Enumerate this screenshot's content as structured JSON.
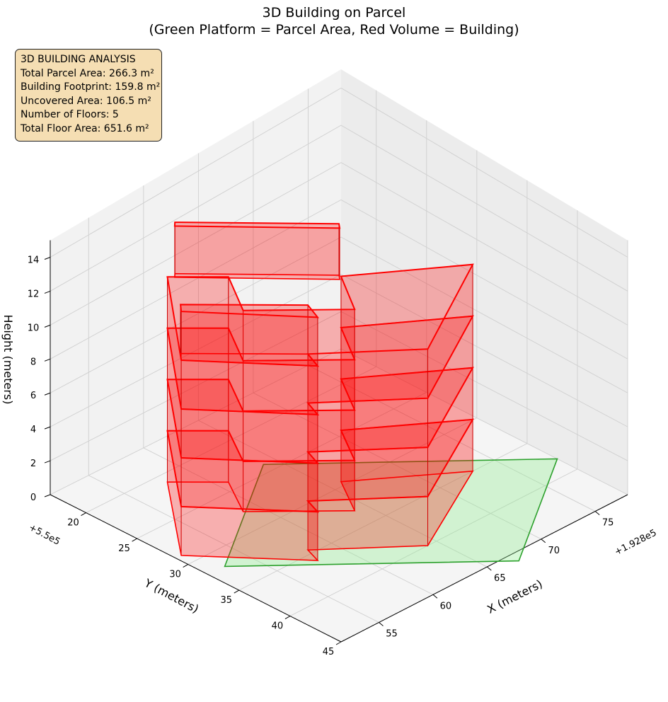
{
  "figure": {
    "title_line1": "3D Building on Parcel",
    "title_line2": "(Green Platform = Parcel Area, Red Volume = Building)"
  },
  "info_box": {
    "heading": "3D BUILDING ANALYSIS",
    "lines": [
      "Total Parcel Area: 266.3 m²",
      "Building Footprint: 159.8 m²",
      "Uncovered Area: 106.5 m²",
      "Number of Floors: 5",
      "Total Floor Area: 651.6 m²"
    ],
    "background_color": "#f5deb3"
  },
  "chart_data": {
    "type": "3d-polygon",
    "x_axis": {
      "label": "X (meters)",
      "offset_label": "+1.928e5",
      "ticks": [
        55,
        60,
        65,
        70,
        75
      ],
      "range": [
        51.5,
        78.0
      ]
    },
    "y_axis": {
      "label": "Y (meters)",
      "offset_label": "+5.5e5",
      "ticks": [
        20,
        25,
        30,
        35,
        40,
        45
      ],
      "range": [
        16.5,
        45.0
      ]
    },
    "z_axis": {
      "label": "Height (meters)",
      "ticks": [
        0,
        2,
        4,
        6,
        8,
        10,
        12,
        14
      ],
      "range": [
        0,
        15
      ]
    },
    "grid": true,
    "parcel": {
      "name": "Parcel Area",
      "color": "#2ca02c",
      "fill": "#90ee90",
      "z": 0,
      "polygon": [
        [
          53.0,
          32.0
        ],
        [
          64.0,
          24.0
        ],
        [
          78.0,
          38.0
        ],
        [
          67.0,
          46.0
        ]
      ]
    },
    "building": {
      "name": "Building",
      "color": "#ff0000",
      "edge_color": "#cc0000",
      "floor_height": 3.0,
      "floors": 5,
      "footprint": [
        [
          52.0,
          28.8
        ],
        [
          58.0,
          21.0
        ],
        [
          60.8,
          24.0
        ],
        [
          58.8,
          27.6
        ],
        [
          64.0,
          33.0
        ],
        [
          66.0,
          29.5
        ],
        [
          73.0,
          35.0
        ],
        [
          64.2,
          40.0
        ],
        [
          58.3,
          34.5
        ],
        [
          57.8,
          36.0
        ]
      ],
      "top_floor_footprint": [
        [
          52.0,
          28.8
        ],
        [
          52.5,
          28.2
        ],
        [
          58.3,
          34.5
        ],
        [
          57.8,
          36.0
        ]
      ],
      "top_block_footprint": [
        [
          58.3,
          21.4
        ],
        [
          58.6,
          21.1
        ],
        [
          66.0,
          29.3
        ],
        [
          65.7,
          29.7
        ]
      ]
    }
  }
}
